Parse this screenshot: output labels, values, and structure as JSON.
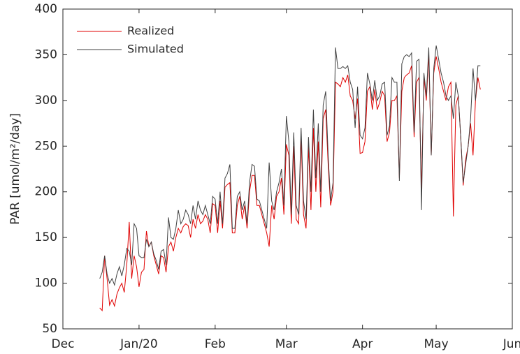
{
  "chart_data": {
    "type": "line",
    "ylabel": "PAR [umol/m²/day]",
    "xlim": [
      0,
      183
    ],
    "xticks": [
      {
        "value": 0,
        "label": "Dec"
      },
      {
        "value": 31,
        "label": "Jan/20"
      },
      {
        "value": 62,
        "label": "Feb"
      },
      {
        "value": 91,
        "label": "Mar"
      },
      {
        "value": 122,
        "label": "Apr"
      },
      {
        "value": 152,
        "label": "May"
      },
      {
        "value": 183,
        "label": "Jun"
      }
    ],
    "ylim": [
      50,
      400
    ],
    "yticks": [
      50,
      100,
      150,
      200,
      250,
      300,
      350,
      400
    ],
    "legend": "upper-left",
    "x": [
      15,
      16,
      17,
      18,
      19,
      20,
      21,
      22,
      23,
      24,
      25,
      26,
      27,
      28,
      29,
      30,
      31,
      32,
      33,
      34,
      35,
      36,
      37,
      38,
      39,
      40,
      41,
      42,
      43,
      44,
      45,
      46,
      47,
      48,
      49,
      50,
      51,
      52,
      53,
      54,
      55,
      56,
      57,
      58,
      59,
      60,
      61,
      62,
      63,
      64,
      65,
      66,
      67,
      68,
      69,
      70,
      71,
      72,
      73,
      74,
      75,
      76,
      77,
      78,
      79,
      80,
      81,
      82,
      83,
      84,
      85,
      86,
      87,
      88,
      89,
      90,
      91,
      92,
      93,
      94,
      95,
      96,
      97,
      98,
      99,
      100,
      101,
      102,
      103,
      104,
      105,
      106,
      107,
      108,
      109,
      110,
      111,
      112,
      113,
      114,
      115,
      116,
      117,
      118,
      119,
      120,
      121,
      122,
      123,
      124,
      125,
      126,
      127,
      128,
      129,
      130,
      131,
      132,
      133,
      134,
      135,
      136,
      137,
      138,
      139,
      140,
      141,
      142,
      143,
      144,
      145,
      146,
      147,
      148,
      149,
      150,
      151,
      152,
      153,
      154,
      155,
      156,
      157,
      158,
      159,
      160,
      161,
      162,
      163,
      164,
      165,
      166,
      167,
      168,
      169,
      170
    ],
    "series": [
      {
        "name": "Realized",
        "color": "#e00000",
        "values": [
          73,
          70,
          130,
          105,
          76,
          82,
          75,
          88,
          95,
          100,
          90,
          120,
          167,
          105,
          130,
          118,
          96,
          112,
          115,
          157,
          140,
          145,
          130,
          120,
          110,
          130,
          128,
          112,
          140,
          145,
          135,
          150,
          160,
          155,
          162,
          165,
          163,
          150,
          170,
          160,
          175,
          165,
          168,
          175,
          170,
          155,
          187,
          185,
          155,
          190,
          160,
          205,
          208,
          210,
          155,
          155,
          185,
          195,
          170,
          185,
          160,
          200,
          218,
          218,
          185,
          185,
          175,
          165,
          155,
          140,
          185,
          170,
          195,
          200,
          215,
          175,
          252,
          240,
          165,
          250,
          170,
          165,
          260,
          175,
          160,
          250,
          180,
          270,
          200,
          255,
          183,
          280,
          290,
          230,
          185,
          200,
          320,
          318,
          315,
          325,
          320,
          328,
          305,
          300,
          280,
          302,
          242,
          243,
          255,
          310,
          315,
          290,
          312,
          290,
          298,
          310,
          305,
          255,
          265,
          300,
          300,
          305,
          215,
          310,
          325,
          328,
          330,
          338,
          260,
          320,
          325,
          200,
          325,
          300,
          350,
          240,
          330,
          348,
          335,
          320,
          310,
          300,
          315,
          320,
          173,
          295,
          305,
          260,
          207,
          235,
          250,
          275,
          240,
          300,
          325,
          312
        ]
      },
      {
        "name": "Simulated",
        "color": "#404040",
        "values": [
          105,
          112,
          130,
          110,
          100,
          105,
          98,
          110,
          118,
          108,
          120,
          138,
          135,
          120,
          165,
          160,
          130,
          128,
          128,
          148,
          140,
          145,
          132,
          125,
          115,
          135,
          137,
          120,
          172,
          150,
          148,
          160,
          180,
          165,
          170,
          180,
          175,
          165,
          185,
          170,
          190,
          180,
          175,
          185,
          175,
          165,
          195,
          192,
          165,
          200,
          165,
          215,
          220,
          230,
          160,
          160,
          195,
          200,
          180,
          190,
          165,
          210,
          230,
          228,
          192,
          190,
          180,
          170,
          160,
          232,
          190,
          180,
          200,
          210,
          225,
          185,
          283,
          255,
          175,
          265,
          185,
          175,
          270,
          190,
          170,
          260,
          200,
          290,
          215,
          275,
          200,
          295,
          310,
          240,
          190,
          210,
          358,
          335,
          335,
          337,
          335,
          338,
          320,
          312,
          270,
          315,
          262,
          258,
          270,
          330,
          318,
          300,
          322,
          300,
          305,
          318,
          320,
          262,
          272,
          325,
          320,
          320,
          212,
          340,
          348,
          350,
          348,
          352,
          265,
          343,
          345,
          180,
          330,
          305,
          358,
          240,
          335,
          360,
          345,
          330,
          320,
          305,
          300,
          305,
          280,
          320,
          305,
          260,
          210,
          230,
          250,
          280,
          335,
          300,
          338,
          338
        ]
      }
    ]
  }
}
